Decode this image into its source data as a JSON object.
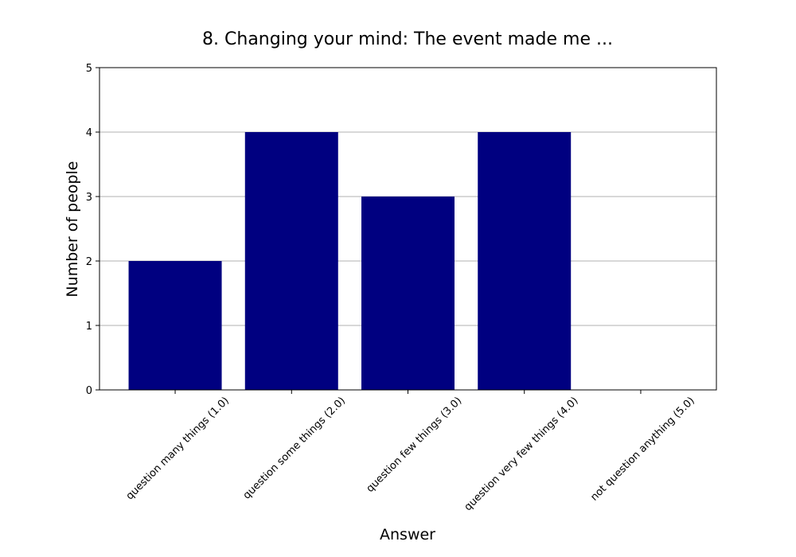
{
  "chart_data": {
    "type": "bar",
    "title": "8. Changing your mind: The event made me ...",
    "xlabel": "Answer",
    "ylabel": "Number of people",
    "categories": [
      "question many things (1.0)",
      "question some things (2.0)",
      "question few things (3.0)",
      "question very few things (4.0)",
      "not question anything (5.0)"
    ],
    "values": [
      2,
      4,
      3,
      4,
      0
    ],
    "ylim": [
      0,
      5
    ],
    "yticks": [
      "0",
      "1",
      "2",
      "3",
      "4",
      "5"
    ],
    "grid": "horizontal",
    "bar_color": "#000080",
    "grid_color": "#b0b0b0"
  }
}
